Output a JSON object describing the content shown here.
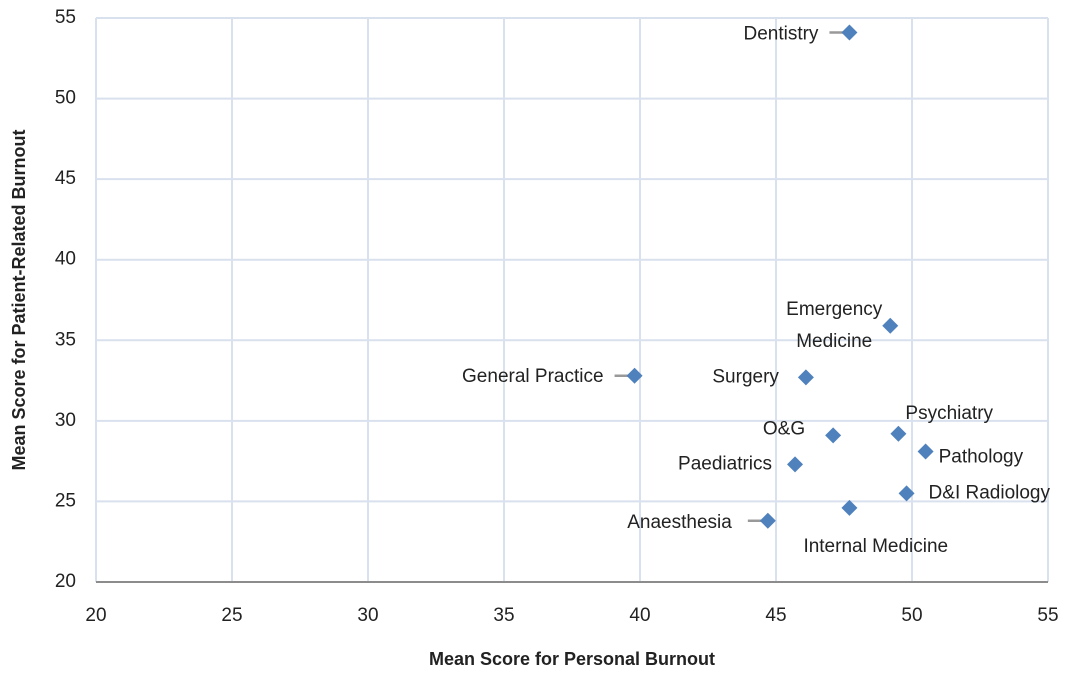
{
  "chart_data": {
    "type": "scatter",
    "x_label": "Mean Score for Personal Burnout",
    "y_label": "Mean Score for Patient-Related Burnout",
    "color": "#4f81bd",
    "labels": [
      "Dentistry",
      "Emergency Medicine",
      "General Practice",
      "Surgery",
      "Psychiatry",
      "O&G",
      "Pathology",
      "Paediatrics",
      "D&I Radiology",
      "Internal Medicine",
      "Anaesthesia"
    ],
    "x": [
      47.7,
      49.2,
      39.8,
      46.1,
      49.5,
      47.1,
      50.5,
      45.7,
      49.8,
      47.7,
      44.7
    ],
    "y": [
      54.1,
      35.9,
      32.8,
      32.7,
      29.2,
      29.1,
      28.1,
      27.3,
      25.5,
      24.6,
      23.8
    ],
    "xlim": [
      20,
      55
    ],
    "xticks": [
      20,
      25,
      30,
      35,
      40,
      45,
      50,
      55
    ],
    "ylim": [
      20,
      55
    ],
    "yticks": [
      20,
      25,
      30,
      35,
      40,
      45,
      50,
      55
    ],
    "grid": true
  }
}
